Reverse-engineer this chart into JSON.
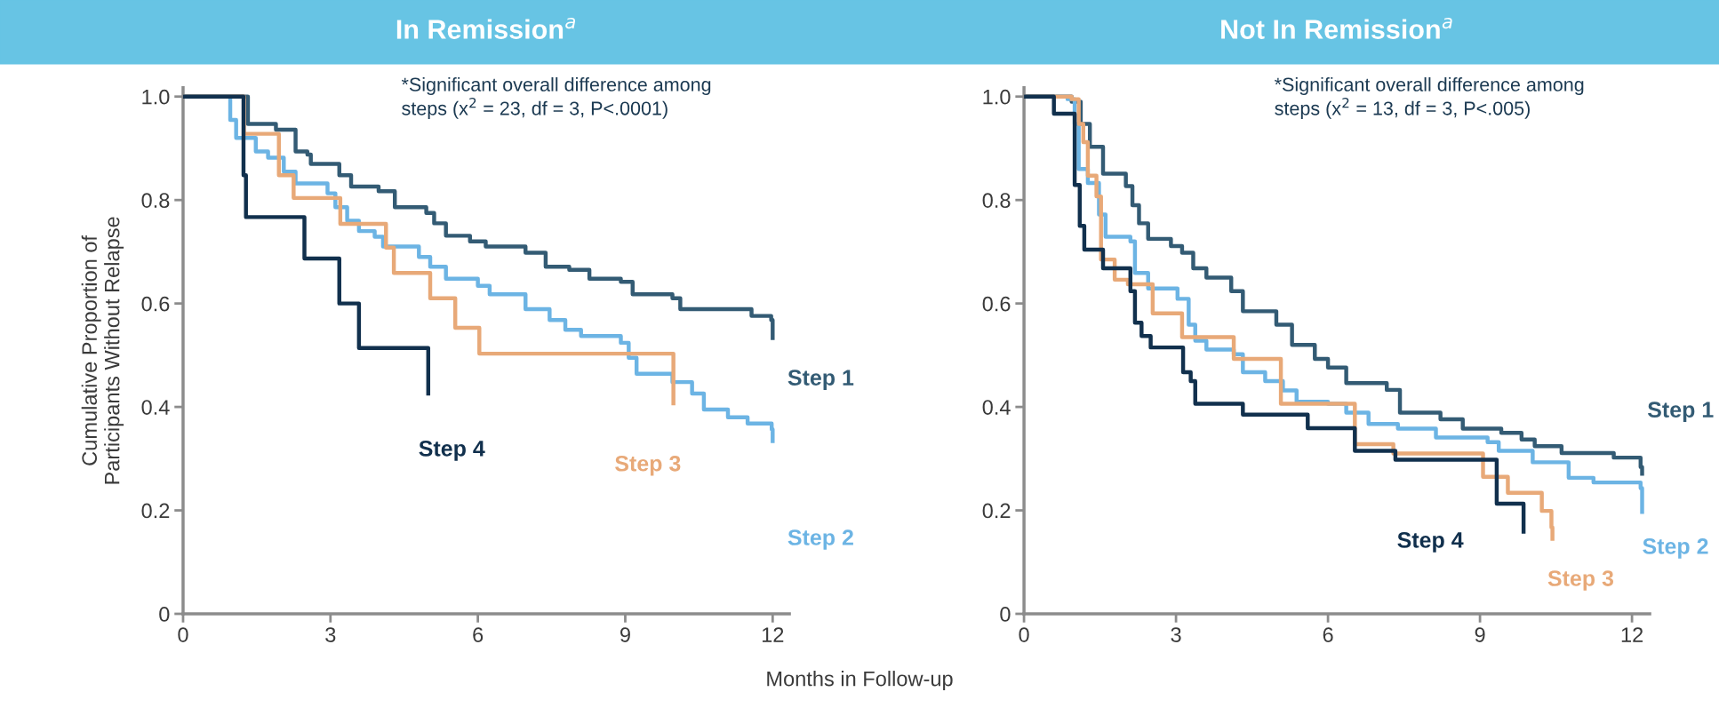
{
  "chart_data": [
    {
      "type": "step",
      "title": "In Remission$^{a}$",
      "xlabel": "Months in Follow-up",
      "ylabel": "Cumulative Proportion of\nParticipants Without Relapse",
      "annotations": [
        "*Significant overall difference among\nsteps (x$^{2}$ = 23, df = 3, P<.0001)"
      ],
      "xlim": [
        0,
        12.34
      ],
      "ylim": [
        0,
        1.017
      ],
      "xticks": [
        0,
        3,
        6,
        9,
        12
      ],
      "yticks": [
        0,
        {
          "value": 0.2,
          "label": "0.2"
        },
        {
          "value": 0.4,
          "label": "0.4"
        },
        {
          "value": 0.6,
          "label": "0.6"
        },
        {
          "value": 0.8,
          "label": "0.8"
        },
        {
          "value": 1,
          "label": "1.0"
        }
      ],
      "grid": false,
      "legend": false,
      "series": [
        {
          "name": "Step 1",
          "color": "#335b74",
          "x": [
            0,
            1.08,
            1.32,
            1.89,
            2.29,
            2.53,
            2.6,
            3.18,
            3.42,
            3.98,
            4.31,
            4.95,
            5.11,
            5.35,
            5.84,
            6.16,
            6.97,
            7.38,
            7.86,
            8.27,
            8.91,
            9.15,
            9.96,
            10.12,
            11.3,
            11.57,
            11.97,
            12.0
          ],
          "values": [
            1.0,
            1.0,
            0.947,
            0.936,
            0.894,
            0.888,
            0.87,
            0.848,
            0.826,
            0.817,
            0.786,
            0.775,
            0.755,
            0.731,
            0.72,
            0.71,
            0.698,
            0.671,
            0.665,
            0.648,
            0.642,
            0.618,
            0.61,
            0.589,
            0.589,
            0.576,
            0.568,
            0.533
          ]
        },
        {
          "name": "Step 2",
          "color": "#6cb4e4",
          "x": [
            0,
            0.96,
            1.08,
            1.24,
            1.48,
            1.73,
            2.05,
            2.29,
            2.94,
            3.1,
            3.34,
            3.58,
            3.9,
            4.07,
            4.8,
            5.03,
            5.35,
            6.0,
            6.24,
            6.97,
            7.46,
            7.78,
            8.1,
            8.91,
            9.07,
            9.23,
            9.96,
            10.36,
            10.6,
            11.09,
            11.49,
            11.98,
            12.0
          ],
          "values": [
            1.0,
            0.955,
            0.92,
            0.92,
            0.894,
            0.882,
            0.855,
            0.832,
            0.813,
            0.786,
            0.76,
            0.74,
            0.729,
            0.71,
            0.69,
            0.671,
            0.648,
            0.634,
            0.618,
            0.589,
            0.568,
            0.549,
            0.537,
            0.524,
            0.495,
            0.464,
            0.448,
            0.426,
            0.395,
            0.38,
            0.368,
            0.357,
            0.334
          ]
        },
        {
          "name": "Step 3",
          "color": "#e8a978",
          "x": [
            0,
            1.24,
            1.95,
            2.25,
            3.2,
            4.13,
            4.29,
            5.03,
            5.54,
            6.03,
            9.98
          ],
          "values": [
            1.0,
            0.928,
            0.848,
            0.804,
            0.754,
            0.708,
            0.659,
            0.61,
            0.553,
            0.503,
            0.407
          ]
        },
        {
          "name": "Step 4",
          "color": "#11304d",
          "x": [
            0,
            1.23,
            1.28,
            2.47,
            3.18,
            3.58,
            4.99
          ],
          "values": [
            1.0,
            0.848,
            0.767,
            0.687,
            0.6,
            0.514,
            0.426
          ]
        }
      ]
    },
    {
      "type": "step",
      "title": "Not In Remission$^{a}$",
      "annotations": [
        "*Significant overall difference among\nsteps (x$^{2}$ = 13, df = 3, P<.005)"
      ],
      "xlim": [
        0,
        12.35
      ],
      "ylim": [
        0,
        1.017
      ],
      "xticks": [
        0,
        3,
        6,
        9,
        12
      ],
      "yticks": [
        0,
        {
          "value": 0.2,
          "label": "0.2"
        },
        {
          "value": 0.4,
          "label": "0.4"
        },
        {
          "value": 0.6,
          "label": "0.6"
        },
        {
          "value": 0.8,
          "label": "0.8"
        },
        {
          "value": 1,
          "label": "1.0"
        }
      ],
      "grid": false,
      "legend": false,
      "series": [
        {
          "name": "Step 1",
          "color": "#335b74",
          "x": [
            0,
            0.63,
            0.94,
            1.12,
            1.3,
            1.56,
            2.01,
            2.14,
            2.27,
            2.45,
            2.9,
            3.12,
            3.34,
            3.6,
            4.09,
            4.32,
            4.98,
            5.29,
            5.74,
            6.0,
            6.36,
            7.16,
            7.42,
            8.22,
            8.66,
            9.42,
            9.82,
            10.08,
            10.61,
            11.64,
            12.17,
            12.2
          ],
          "values": [
            1.0,
            1.0,
            0.99,
            0.947,
            0.903,
            0.851,
            0.827,
            0.79,
            0.755,
            0.725,
            0.711,
            0.698,
            0.668,
            0.65,
            0.624,
            0.585,
            0.559,
            0.52,
            0.493,
            0.476,
            0.446,
            0.433,
            0.389,
            0.376,
            0.358,
            0.35,
            0.337,
            0.324,
            0.311,
            0.302,
            0.284,
            0.271
          ]
        },
        {
          "name": "Step 2",
          "color": "#6cb4e4",
          "x": [
            0,
            0.63,
            0.86,
            1.0,
            1.08,
            1.26,
            1.48,
            1.61,
            2.1,
            2.19,
            2.45,
            3.03,
            3.25,
            3.38,
            3.6,
            4.14,
            4.32,
            4.76,
            5.11,
            5.38,
            6.0,
            6.36,
            6.8,
            7.38,
            8.13,
            9.15,
            9.37,
            10.04,
            10.75,
            11.24,
            12.17,
            12.2
          ],
          "values": [
            1.0,
            1.0,
            0.995,
            0.947,
            0.86,
            0.833,
            0.772,
            0.729,
            0.72,
            0.659,
            0.629,
            0.609,
            0.559,
            0.528,
            0.511,
            0.502,
            0.467,
            0.45,
            0.432,
            0.41,
            0.406,
            0.389,
            0.367,
            0.358,
            0.341,
            0.332,
            0.315,
            0.293,
            0.263,
            0.254,
            0.243,
            0.197
          ]
        },
        {
          "name": "Step 3",
          "color": "#e8a978",
          "x": [
            0,
            0.77,
            0.94,
            1.08,
            1.17,
            1.26,
            1.43,
            1.52,
            1.79,
            2.05,
            2.54,
            3.12,
            4.14,
            5.07,
            6.53,
            7.29,
            9.06,
            9.55,
            10.22,
            10.41,
            10.43
          ],
          "values": [
            1.0,
            1.0,
            0.995,
            0.947,
            0.912,
            0.847,
            0.807,
            0.685,
            0.646,
            0.637,
            0.581,
            0.535,
            0.493,
            0.406,
            0.328,
            0.31,
            0.265,
            0.234,
            0.199,
            0.167,
            0.145
          ]
        },
        {
          "name": "Step 4",
          "color": "#11304d",
          "x": [
            0,
            0.59,
            1.0,
            1.1,
            1.19,
            1.56,
            2.1,
            2.19,
            2.32,
            2.5,
            3.14,
            3.29,
            3.38,
            4.32,
            5.6,
            6.53,
            7.33,
            9.33,
            9.86
          ],
          "values": [
            1.0,
            0.967,
            0.829,
            0.75,
            0.704,
            0.668,
            0.624,
            0.563,
            0.537,
            0.515,
            0.467,
            0.45,
            0.406,
            0.385,
            0.359,
            0.315,
            0.298,
            0.213,
            0.159
          ]
        }
      ]
    }
  ]
}
